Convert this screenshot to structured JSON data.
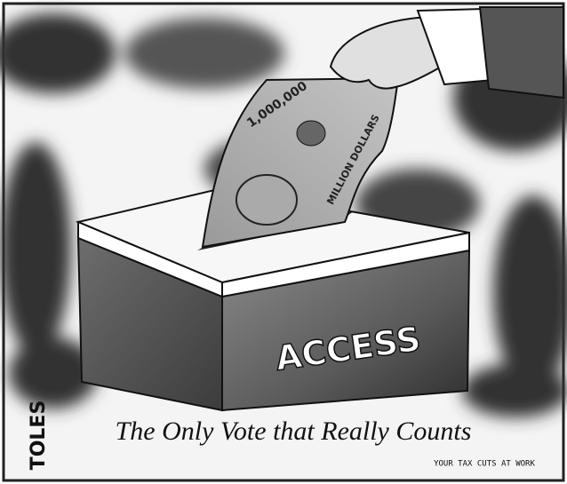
{
  "cartoon": {
    "box_label": "ACCESS",
    "caption": "The Only Vote that Really Counts",
    "artist": "TOLES",
    "bill_amount": "1,000,000",
    "bill_text": "MILLION DOLLARS",
    "side_note": "YOUR TAX CUTS AT WORK"
  }
}
